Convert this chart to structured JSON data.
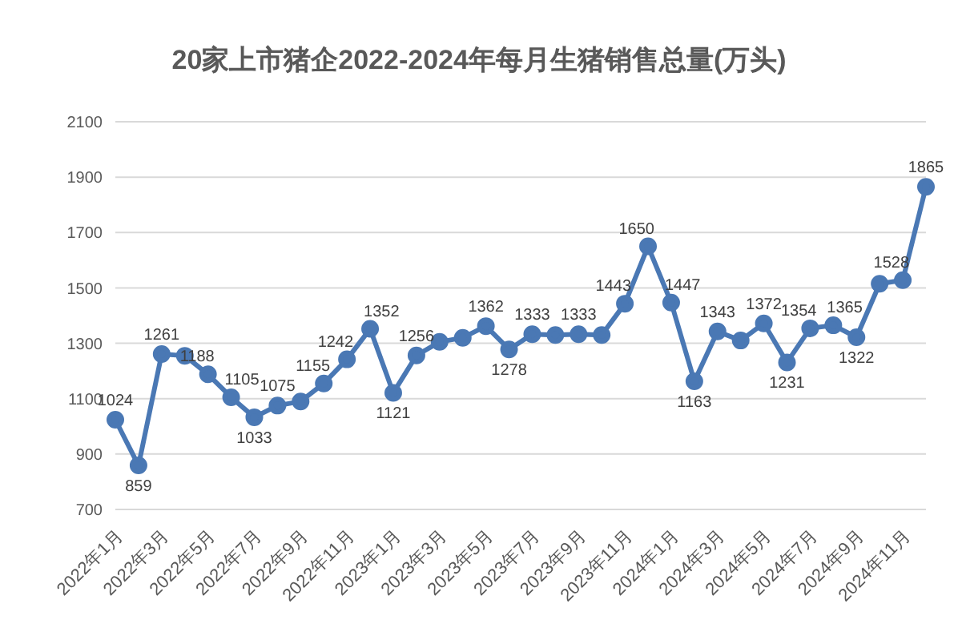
{
  "chart_data": {
    "type": "line",
    "title": "20家上市猪企2022-2024年每月生猪销售总量(万头)",
    "categories": [
      "2022年1月",
      null,
      "2022年3月",
      null,
      "2022年5月",
      null,
      "2022年7月",
      null,
      "2022年9月",
      null,
      "2022年11月",
      null,
      "2023年1月",
      null,
      "2023年3月",
      null,
      "2023年5月",
      null,
      "2023年7月",
      null,
      "2023年9月",
      null,
      "2023年11月",
      null,
      "2024年1月",
      null,
      "2024年3月",
      null,
      "2024年5月",
      null,
      "2024年7月",
      null,
      "2024年9月",
      null,
      "2024年11月",
      null
    ],
    "series": [
      {
        "color": "#4a78b4",
        "values": [
          1024,
          859,
          1261,
          1255,
          1188,
          1105,
          1033,
          1075,
          1090,
          1155,
          1242,
          1352,
          1121,
          1256,
          1305,
          1320,
          1362,
          1278,
          1333,
          1330,
          1333,
          1330,
          1443,
          1650,
          1447,
          1163,
          1343,
          1310,
          1372,
          1231,
          1354,
          1365,
          1322,
          1515,
          1528,
          1865
        ],
        "value_labels": [
          "1024",
          "859",
          "1261",
          null,
          "1188",
          "1105",
          "1033",
          "1075",
          null,
          "1155",
          "1242",
          "1352",
          "1121",
          "1256",
          null,
          null,
          "1362",
          "1278",
          "1333",
          null,
          "1333",
          null,
          "1443",
          "1650",
          "1447",
          "1163",
          "1343",
          null,
          "1372",
          "1231",
          "1354",
          "1365",
          "1322",
          null,
          "1528",
          "1865"
        ]
      }
    ],
    "ylim": [
      700,
      2100
    ],
    "yticks": [
      700,
      900,
      1100,
      1300,
      1500,
      1700,
      1900,
      2100
    ],
    "grid": "y",
    "legend": false,
    "marker": "circle",
    "line_style": "solid"
  }
}
